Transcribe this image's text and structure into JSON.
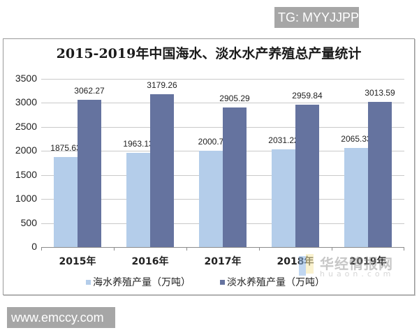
{
  "watermarks": {
    "tg": "TG: MYYJJPP",
    "site": "www.emccy.com",
    "brand": "华经情报网",
    "brand_sub": "huaon.com"
  },
  "chart_data": {
    "type": "bar",
    "title": "2015-2019年中国海水、淡水水产养殖总产量统计",
    "categories": [
      "2015年",
      "2016年",
      "2017年",
      "2018年",
      "2019年"
    ],
    "series": [
      {
        "name": "海水养殖产量（万吨）",
        "color": "#b4cdea",
        "values": [
          1875.63,
          1963.13,
          2000.7,
          2031.22,
          2065.33
        ],
        "labels": [
          "1875.63",
          "1963.13",
          "2000.7",
          "2031.22",
          "2065.33"
        ]
      },
      {
        "name": "淡水养殖产量（万吨）",
        "color": "#65739f",
        "values": [
          3062.27,
          3179.26,
          2905.29,
          2959.84,
          3013.59
        ],
        "labels": [
          "3062.27",
          "3179.26",
          "2905.29",
          "2959.84",
          "3013.59"
        ]
      }
    ],
    "xlabel": "",
    "ylabel": "",
    "ylim": [
      0,
      3500
    ],
    "yticks": [
      "3500",
      "3000",
      "2500",
      "2000",
      "1500",
      "1000",
      "500",
      "0"
    ],
    "grid": true,
    "legend_position": "bottom"
  }
}
